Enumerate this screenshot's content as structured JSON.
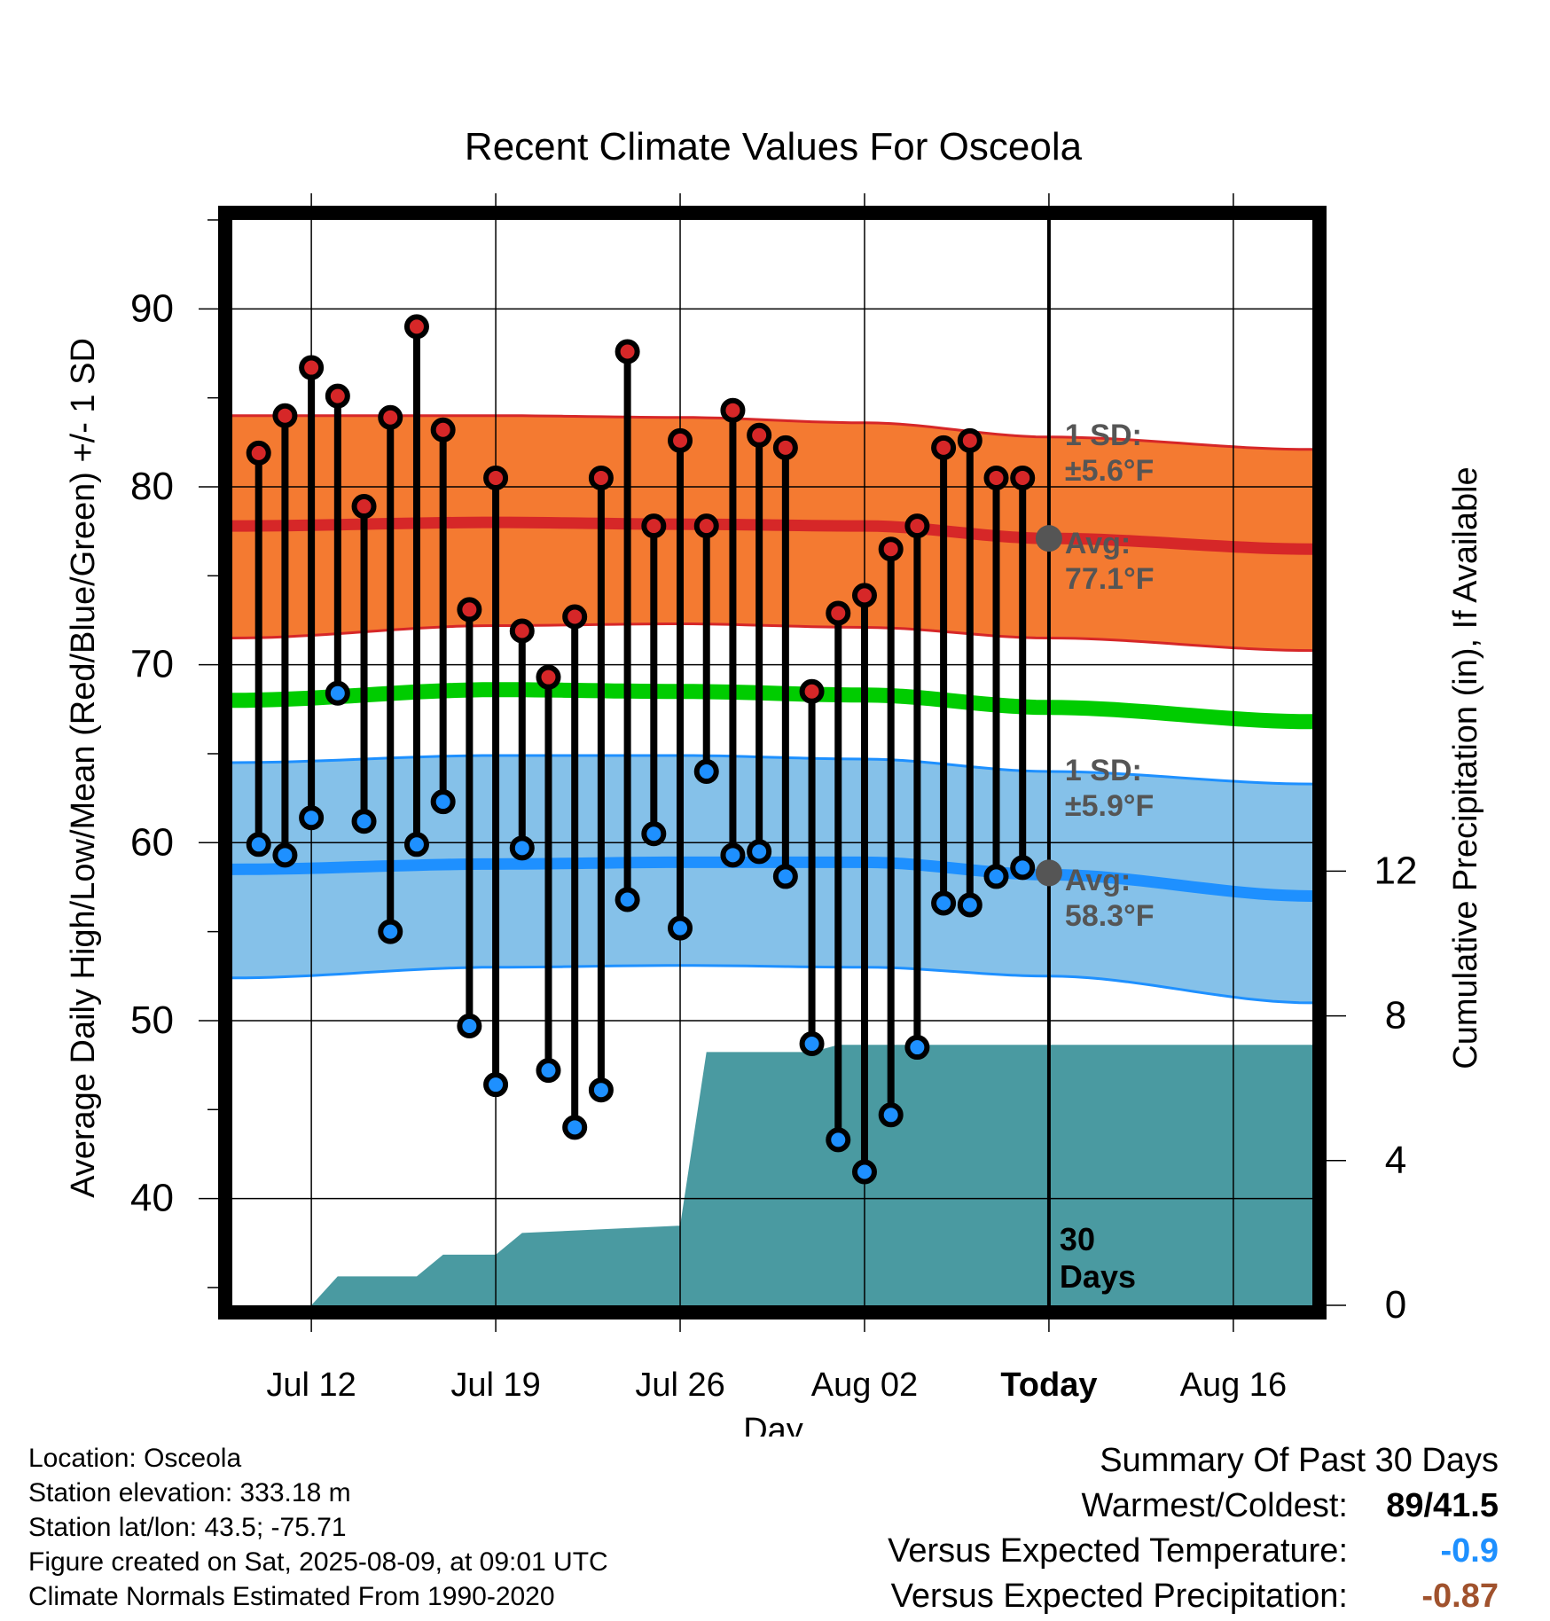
{
  "chart_data": {
    "type": "line",
    "title": "Recent Climate Values For Osceola",
    "xlabel": "Day",
    "ylabel": "Average Daily High/Low/Mean (Red/Blue/Green) +/- 1 SD",
    "y2label": "Cumulative Precipitation (in), If Available",
    "ylim": [
      34,
      95
    ],
    "y2lim": [
      0,
      30
    ],
    "y_ticks": [
      40,
      50,
      60,
      70,
      80,
      90
    ],
    "y2_ticks": [
      0,
      4,
      8,
      12
    ],
    "x_ticks": [
      "Jul 12",
      "Jul 19",
      "Jul 26",
      "Aug 02",
      "Today",
      "Aug 16"
    ],
    "x_range_days": [
      "2025-07-09",
      "2025-08-19"
    ],
    "today": "2025-08-09",
    "grid": true,
    "days": [
      "2025-07-10",
      "2025-07-11",
      "2025-07-12",
      "2025-07-13",
      "2025-07-14",
      "2025-07-15",
      "2025-07-16",
      "2025-07-17",
      "2025-07-18",
      "2025-07-19",
      "2025-07-20",
      "2025-07-21",
      "2025-07-22",
      "2025-07-23",
      "2025-07-24",
      "2025-07-25",
      "2025-07-26",
      "2025-07-27",
      "2025-07-28",
      "2025-07-29",
      "2025-07-30",
      "2025-07-31",
      "2025-08-01",
      "2025-08-02",
      "2025-08-03",
      "2025-08-04",
      "2025-08-05",
      "2025-08-06",
      "2025-08-07",
      "2025-08-08"
    ],
    "series": [
      {
        "name": "High",
        "color": "#d62728",
        "values": [
          81.9,
          84.0,
          86.7,
          85.1,
          78.9,
          83.9,
          89.0,
          83.2,
          73.1,
          80.5,
          71.9,
          69.3,
          72.7,
          80.5,
          87.6,
          77.8,
          82.6,
          77.8,
          84.3,
          82.9,
          82.2,
          68.5,
          72.9,
          73.9,
          76.5,
          77.8,
          82.2,
          82.6,
          80.5,
          80.5
        ]
      },
      {
        "name": "Low",
        "color": "#1e90ff",
        "values": [
          59.9,
          59.3,
          61.4,
          68.4,
          61.2,
          55.0,
          59.9,
          62.3,
          49.7,
          46.4,
          59.7,
          47.2,
          44.0,
          46.1,
          56.8,
          60.5,
          55.2,
          64.0,
          59.3,
          59.5,
          58.1,
          48.7,
          43.3,
          41.5,
          44.7,
          48.5,
          56.6,
          56.5,
          58.1,
          58.6
        ]
      }
    ],
    "normals": {
      "high_mean": [
        77.8,
        78.0,
        77.9,
        77.8,
        77.1,
        76.5
      ],
      "high_sd_upper": [
        84.0,
        84.0,
        83.9,
        83.6,
        82.8,
        82.1
      ],
      "high_sd_lower": [
        71.5,
        72.2,
        72.3,
        72.1,
        71.5,
        70.8
      ],
      "mean": [
        68.0,
        68.6,
        68.5,
        68.3,
        67.6,
        66.8
      ],
      "low_mean": [
        58.5,
        58.8,
        58.9,
        58.9,
        58.2,
        57.0
      ],
      "low_sd_upper": [
        64.5,
        64.9,
        64.9,
        64.7,
        64.0,
        63.3
      ],
      "low_sd_lower": [
        52.4,
        53.0,
        53.1,
        53.0,
        52.5,
        51.0
      ],
      "days": [
        "2025-07-09",
        "2025-07-19",
        "2025-07-26",
        "2025-08-02",
        "2025-08-09",
        "2025-08-19"
      ]
    },
    "precip_cumulative": {
      "color": "#4a9aa1",
      "days": [
        "2025-07-12",
        "2025-07-13",
        "2025-07-16",
        "2025-07-17",
        "2025-07-19",
        "2025-07-20",
        "2025-07-26",
        "2025-07-27",
        "2025-07-31",
        "2025-08-01",
        "2025-08-19"
      ],
      "values": [
        0.0,
        0.8,
        0.8,
        1.4,
        1.4,
        2.0,
        2.2,
        7.0,
        7.0,
        7.2,
        7.2
      ]
    },
    "annotations": {
      "high_sd": [
        "1 SD:",
        "±5.6°F"
      ],
      "high_avg": [
        "Avg:",
        "77.1°F"
      ],
      "low_sd": [
        "1 SD:",
        "±5.9°F"
      ],
      "low_avg": [
        "Avg:",
        "58.3°F"
      ],
      "days_label": [
        "30",
        "Days"
      ],
      "high_avg_value": 77.1,
      "low_avg_value": 58.3
    }
  },
  "footer": {
    "location": "Location: Osceola",
    "elevation": "Station elevation: 333.18 m",
    "latlon": "Station lat/lon: 43.5; -75.71",
    "created": "Figure created on Sat, 2025-08-09, at 09:01 UTC",
    "normals": "Climate Normals Estimated From 1990-2020"
  },
  "summary": {
    "title": "Summary Of Past 30 Days",
    "warmest_label": "Warmest/Coldest:",
    "warmest_value": "89/41.5",
    "temp_label": "Versus Expected Temperature:",
    "temp_value": "-0.9",
    "temp_color": "#1e90ff",
    "precip_label": "Versus Expected Precipitation:",
    "precip_value": "-0.87",
    "precip_color": "#a0522d"
  }
}
